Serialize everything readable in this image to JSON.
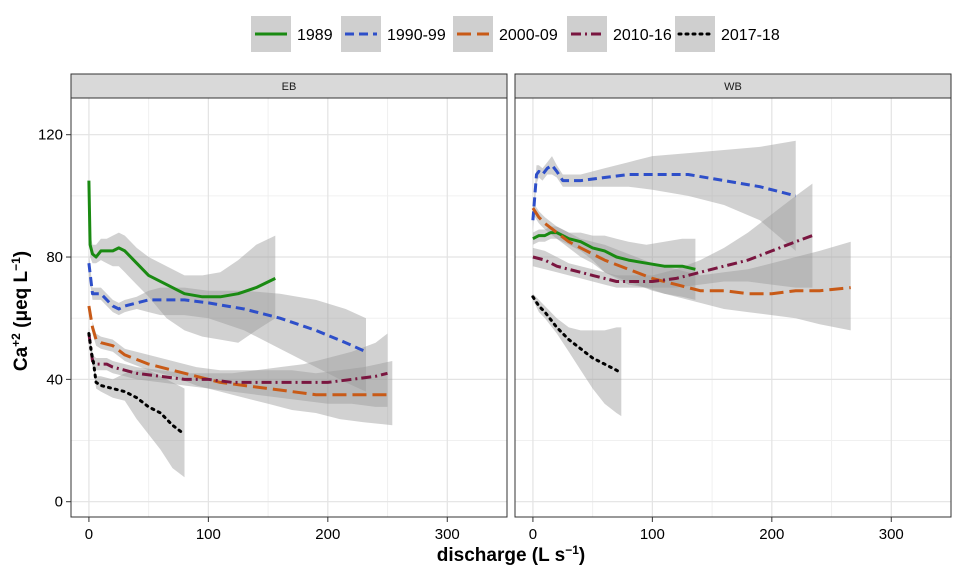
{
  "chart_data": {
    "type": "line",
    "facets": [
      "EB",
      "WB"
    ],
    "xlabel": {
      "main": "discharge (L s",
      "sup": "−1",
      "tail": ")"
    },
    "ylabel": {
      "main": "Ca",
      "sup": "+2",
      "mid": " (μeq L",
      "sup2": "−1",
      "tail": ")"
    },
    "xlim": [
      -15,
      350
    ],
    "ylim": [
      -5,
      132
    ],
    "x_ticks": [
      0,
      100,
      200,
      300
    ],
    "y_ticks": [
      0,
      40,
      80,
      120
    ],
    "grid": true,
    "legend_position": "top",
    "series": [
      {
        "name": "1989",
        "color": "#1a8a12",
        "dash": "solid"
      },
      {
        "name": "1990-99",
        "color": "#2e4fc9",
        "dash": "dashed"
      },
      {
        "name": "2000-09",
        "color": "#c85a17",
        "dash": "longdash"
      },
      {
        "name": "2010-16",
        "color": "#7a1640",
        "dash": "dotdash"
      },
      {
        "name": "2017-18",
        "color": "#000000",
        "dash": "dotted"
      }
    ],
    "panels": [
      {
        "facet": "EB",
        "curves": [
          {
            "series": "1989",
            "x": [
              0,
              1,
              3,
              6,
              10,
              15,
              20,
              25,
              30,
              40,
              50,
              65,
              80,
              95,
              110,
              125,
              140,
              156
            ],
            "y": [
              105,
              84,
              81,
              80,
              82,
              82,
              82,
              83,
              82,
              78,
              74,
              71,
              68,
              67,
              67,
              68,
              70,
              73
            ],
            "lo": [
              null,
              80,
              78,
              78,
              79,
              78,
              77,
              77,
              75,
              71,
              67,
              60,
              56,
              54,
              53,
              52,
              56,
              60
            ],
            "hi": [
              null,
              88,
              84,
              84,
              86,
              86,
              87,
              88,
              87,
              83,
              80,
              77,
              74,
              74,
              75,
              79,
              84,
              87
            ]
          },
          {
            "series": "1990-99",
            "x": [
              0,
              3,
              6,
              10,
              15,
              20,
              25,
              30,
              40,
              50,
              60,
              80,
              100,
              130,
              160,
              190,
              215,
              232
            ],
            "y": [
              78,
              68,
              68,
              68,
              66,
              64,
              63,
              64,
              65,
              66,
              66,
              66,
              65,
              63,
              60,
              56,
              52,
              49
            ],
            "lo": [
              74,
              66,
              66,
              66,
              64,
              62,
              61,
              62,
              63,
              62,
              61,
              61,
              60,
              56,
              50,
              44,
              39,
              36
            ],
            "hi": [
              81,
              70,
              70,
              70,
              68,
              66,
              65,
              66,
              67,
              69,
              70,
              70,
              69,
              69,
              68,
              66,
              63,
              60
            ]
          },
          {
            "series": "2000-09",
            "x": [
              0,
              3,
              6,
              10,
              20,
              30,
              50,
              70,
              90,
              110,
              130,
              150,
              170,
              190,
              210,
              230,
              254
            ],
            "y": [
              64,
              57,
              53,
              52,
              51,
              48,
              45,
              43,
              41,
              39,
              38,
              37,
              36,
              35,
              35,
              35,
              35
            ],
            "lo": [
              null,
              55,
              51,
              50,
              49,
              46,
              43,
              41,
              38,
              36,
              34,
              32,
              30,
              29,
              27,
              26,
              25
            ],
            "hi": [
              null,
              59,
              55,
              54,
              53,
              50,
              48,
              46,
              44,
              43,
              43,
              43,
              43,
              42,
              43,
              44,
              46
            ]
          },
          {
            "series": "2010-16",
            "x": [
              0,
              3,
              6,
              10,
              15,
              20,
              30,
              40,
              60,
              80,
              100,
              120,
              140,
              160,
              180,
              200,
              220,
              240,
              250
            ],
            "y": [
              55,
              46,
              45,
              45,
              45,
              44,
              43,
              42,
              41,
              40,
              40,
              39,
              39,
              39,
              39,
              39,
              40,
              41,
              42
            ],
            "lo": [
              53,
              44,
              43,
              43,
              43,
              42,
              41,
              40,
              39,
              38,
              37,
              36,
              35,
              34,
              33,
              32,
              32,
              31,
              31
            ],
            "hi": [
              57,
              48,
              47,
              47,
              47,
              46,
              45,
              44,
              43,
              42,
              42,
              42,
              43,
              44,
              45,
              47,
              49,
              52,
              55
            ]
          },
          {
            "series": "2017-18",
            "x": [
              0,
              2,
              4,
              6,
              10,
              20,
              30,
              40,
              50,
              60,
              70,
              80
            ],
            "y": [
              55,
              49,
              45,
              39,
              38,
              37,
              36,
              34,
              31,
              29,
              25,
              22
            ],
            "lo": [
              54,
              47,
              43,
              37,
              36,
              34,
              33,
              27,
              22,
              17,
              11,
              8
            ],
            "hi": [
              56,
              51,
              47,
              41,
              41,
              40,
              42,
              43,
              43,
              41,
              39,
              37
            ]
          }
        ]
      },
      {
        "facet": "WB",
        "curves": [
          {
            "series": "1989",
            "x": [
              0,
              5,
              10,
              15,
              20,
              25,
              30,
              40,
              50,
              60,
              70,
              80,
              95,
              110,
              125,
              136
            ],
            "y": [
              86,
              87,
              87,
              88,
              88,
              87,
              86,
              85,
              83,
              82,
              80,
              79,
              78,
              77,
              77,
              76
            ],
            "lo": [
              84,
              85,
              85,
              86,
              86,
              85,
              84,
              82,
              79,
              75,
              73,
              71,
              70,
              68,
              67,
              66
            ],
            "hi": [
              88,
              89,
              89,
              90,
              90,
              89,
              88,
              88,
              87,
              87,
              86,
              85,
              84,
              85,
              86,
              86
            ]
          },
          {
            "series": "1990-99",
            "x": [
              0,
              3,
              5,
              8,
              12,
              16,
              20,
              25,
              30,
              40,
              60,
              80,
              100,
              130,
              160,
              190,
              220
            ],
            "y": [
              92,
              107,
              108,
              107,
              109,
              110,
              108,
              105,
              105,
              105,
              106,
              107,
              107,
              107,
              105,
              103,
              100
            ],
            "lo": [
              89,
              104,
              106,
              105,
              107,
              107,
              106,
              103,
              103,
              103,
              103,
              103,
              102,
              100,
              97,
              92,
              82
            ],
            "hi": [
              95,
              110,
              110,
              109,
              111,
              113,
              110,
              107,
              107,
              107,
              109,
              111,
              113,
              114,
              115,
              116,
              118
            ]
          },
          {
            "series": "2000-09",
            "x": [
              0,
              5,
              10,
              20,
              30,
              40,
              50,
              60,
              80,
              100,
              120,
              140,
              160,
              180,
              200,
              220,
              240,
              266
            ],
            "y": [
              96,
              93,
              91,
              88,
              85,
              83,
              81,
              79,
              76,
              73,
              71,
              69,
              69,
              68,
              68,
              69,
              69,
              70
            ],
            "lo": [
              94,
              91,
              89,
              86,
              83,
              80,
              78,
              75,
              72,
              69,
              67,
              65,
              63,
              62,
              61,
              60,
              58,
              56
            ],
            "hi": [
              98,
              95,
              93,
              90,
              88,
              86,
              85,
              84,
              81,
              78,
              76,
              74,
              75,
              76,
              78,
              80,
              82,
              85
            ]
          },
          {
            "series": "2010-16",
            "x": [
              0,
              10,
              20,
              30,
              40,
              50,
              60,
              70,
              80,
              90,
              100,
              120,
              140,
              160,
              180,
              200,
              220,
              234
            ],
            "y": [
              80,
              79,
              77,
              76,
              75,
              74,
              73,
              72,
              72,
              72,
              72,
              73,
              75,
              77,
              79,
              82,
              85,
              87
            ],
            "lo": [
              77,
              76,
              75,
              74,
              73,
              72,
              71,
              70,
              70,
              70,
              70,
              70,
              71,
              72,
              72,
              71,
              70,
              70
            ],
            "hi": [
              83,
              82,
              80,
              78,
              77,
              76,
              75,
              74,
              74,
              74,
              74,
              76,
              79,
              83,
              88,
              94,
              100,
              104
            ]
          },
          {
            "series": "2017-18",
            "x": [
              0,
              5,
              10,
              20,
              30,
              40,
              50,
              60,
              70,
              74
            ],
            "y": [
              67,
              64,
              62,
              57,
              53,
              50,
              47,
              45,
              43,
              42
            ],
            "lo": [
              66,
              62,
              60,
              55,
              49,
              43,
              37,
              32,
              29,
              28
            ],
            "hi": [
              68,
              66,
              64,
              60,
              57,
              56,
              56,
              56,
              57,
              57
            ]
          }
        ]
      }
    ]
  }
}
